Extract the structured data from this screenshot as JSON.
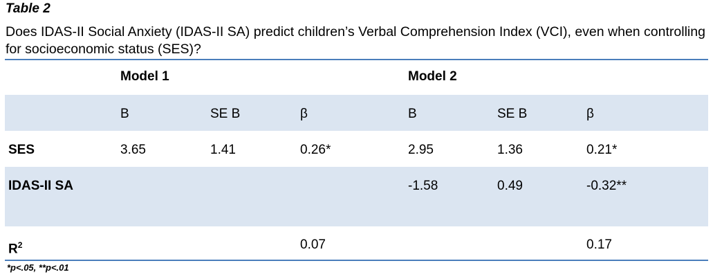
{
  "caption": {
    "label": "Table 2",
    "text": "Does IDAS-II Social Anxiety (IDAS-II SA) predict children’s Verbal Comprehension Index (VCI), even when controlling for socioeconomic status (SES)?"
  },
  "table": {
    "model_headers": [
      "Model 1",
      "Model 2"
    ],
    "column_headers": [
      "B",
      "SE B",
      "β",
      "B",
      "SE B",
      "β"
    ],
    "rows": [
      {
        "label": "SES",
        "cells": [
          "3.65",
          "1.41",
          "0.26*",
          "2.95",
          "1.36",
          "0.21*"
        ]
      },
      {
        "label": "IDAS-II SA",
        "cells": [
          "",
          "",
          "",
          "-1.58",
          "0.49",
          "-0.32**"
        ]
      },
      {
        "label_base": "R",
        "label_sup": "2",
        "cells": [
          "",
          "",
          "0.07",
          "",
          "",
          "0.17"
        ]
      }
    ]
  },
  "footnote": "*p<.05, **p<.01",
  "colors": {
    "rule": "#4a7ebb",
    "band": "#dbe5f1"
  }
}
